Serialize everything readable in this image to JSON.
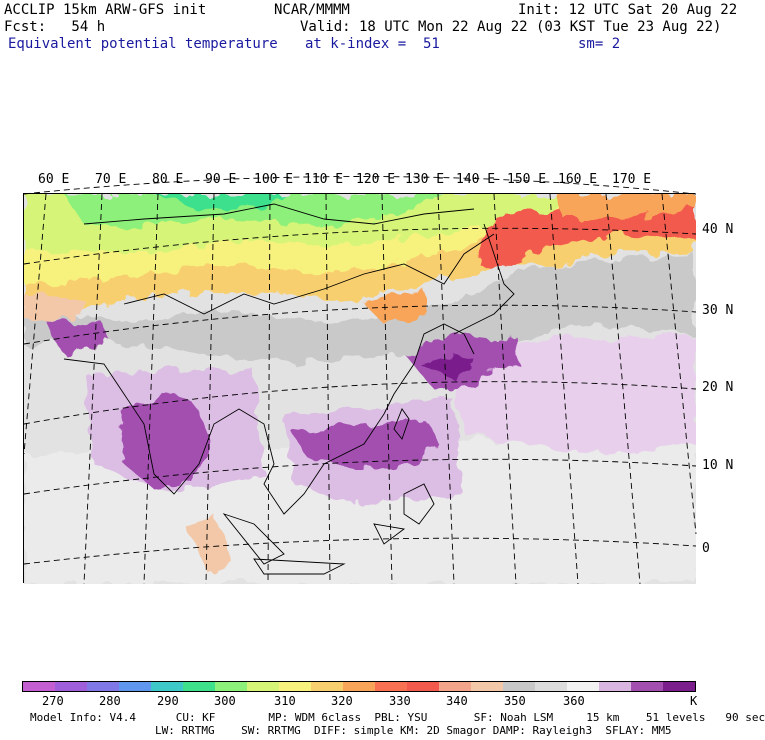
{
  "header": {
    "line1_left": "ACCLIP 15km ARW-GFS init",
    "line1_mid": "NCAR/MMMM",
    "line1_right": "Init: 12 UTC Sat 20 Aug 22",
    "line2_left": "Fcst:   54 h",
    "line2_right": "Valid: 18 UTC Mon 22 Aug 22 (03 KST Tue 23 Aug 22)",
    "line3_field": "Equivalent potential temperature",
    "line3_level": "at k-index =  51",
    "line3_sm": "sm= 2"
  },
  "map": {
    "lon_labels": [
      "60 E",
      "70 E",
      "80 E",
      "90 E",
      "100 E",
      "110 E",
      "120 E",
      "130 E",
      "140 E",
      "150 E",
      "160 E",
      "170 E"
    ],
    "lat_labels": [
      "40 N",
      "30 N",
      "20 N",
      "10 N",
      "0"
    ]
  },
  "colorbar": {
    "colors": [
      "#c45fd1",
      "#9f5fdb",
      "#7f78e6",
      "#5f96ee",
      "#3fc8c8",
      "#3ee08c",
      "#8cf07a",
      "#d6f578",
      "#f7f27d",
      "#f8cf6e",
      "#f8a55a",
      "#f77152",
      "#f25a4e",
      "#f2a58a",
      "#f2c8a8",
      "#c8c8c8",
      "#dcdcdc",
      "#f2f2f2",
      "#d9b6e0",
      "#a24fb0",
      "#7a1f8c"
    ],
    "ticks": [
      "270",
      "280",
      "290",
      "300",
      "310",
      "320",
      "330",
      "340",
      "350",
      "360"
    ],
    "unit": "K"
  },
  "footer": {
    "line1": "Model Info: V4.4      CU: KF        MP: WDM 6class  PBL: YSU       SF: Noah LSM     15 km    51 levels   90 sec",
    "line2": "LW: RRTMG    SW: RRTMG  DIFF: simple KM: 2D Smagor DAMP: Rayleigh3  SFLAY: MM5"
  }
}
